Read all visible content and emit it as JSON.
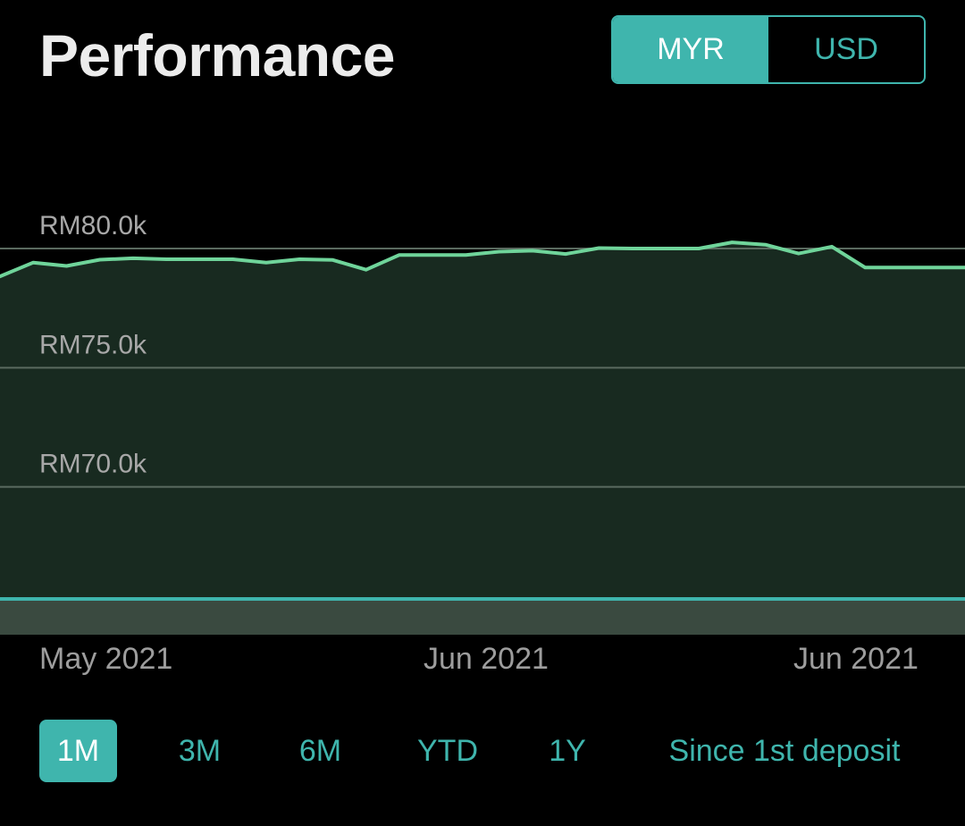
{
  "header": {
    "title": "Performance"
  },
  "currency_toggle": {
    "options": [
      "MYR",
      "USD"
    ],
    "selected": "MYR"
  },
  "range_selector": {
    "options": [
      "1M",
      "3M",
      "6M",
      "YTD",
      "1Y",
      "Since 1st deposit"
    ],
    "selected": "1M"
  },
  "colors": {
    "accent": "#3fb5ad",
    "line": "#6fd49a",
    "area_fill": "#182a20",
    "background": "#000000"
  },
  "chart_data": {
    "type": "area",
    "currency": "MYR",
    "y_tick_labels": [
      "RM80.0k",
      "RM75.0k",
      "RM70.0k"
    ],
    "y_ticks": [
      80000,
      75000,
      70000
    ],
    "x_tick_labels": [
      "May 2021",
      "Jun 2021",
      "Jun 2021"
    ],
    "ylim": [
      65300,
      84800
    ],
    "grid": true,
    "baseline": 65300,
    "series": [
      {
        "values": [
          78830,
          79410,
          79270,
          79530,
          79590,
          79550,
          79550,
          79550,
          79410,
          79550,
          79520,
          79110,
          79730,
          79730,
          79730,
          79870,
          79910,
          79770,
          80020,
          80000,
          80000,
          80000,
          80260,
          80160,
          79790,
          80080,
          79200,
          79200,
          79200,
          79200
        ]
      }
    ]
  }
}
